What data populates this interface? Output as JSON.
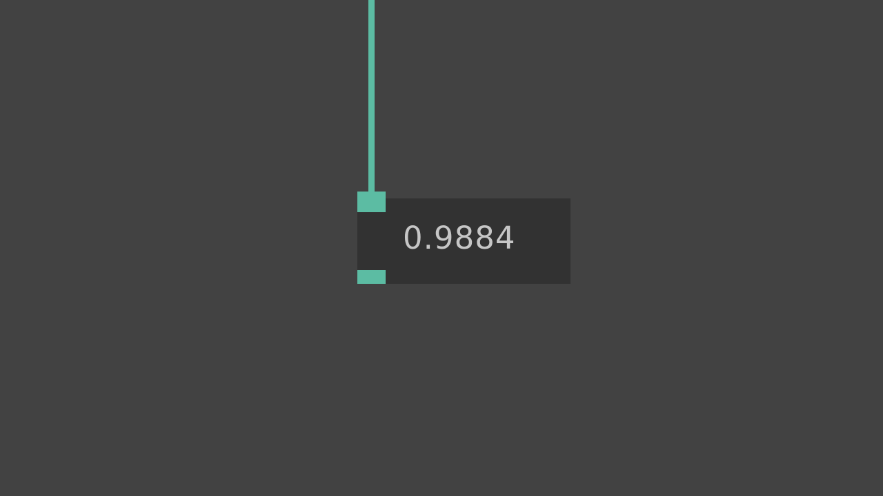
{
  "number_box": {
    "value": "0.9884"
  },
  "colors": {
    "background": "#424242",
    "box_fill": "#323232",
    "cord_accent": "#5cbca3",
    "value_text": "#c6c6c6"
  }
}
